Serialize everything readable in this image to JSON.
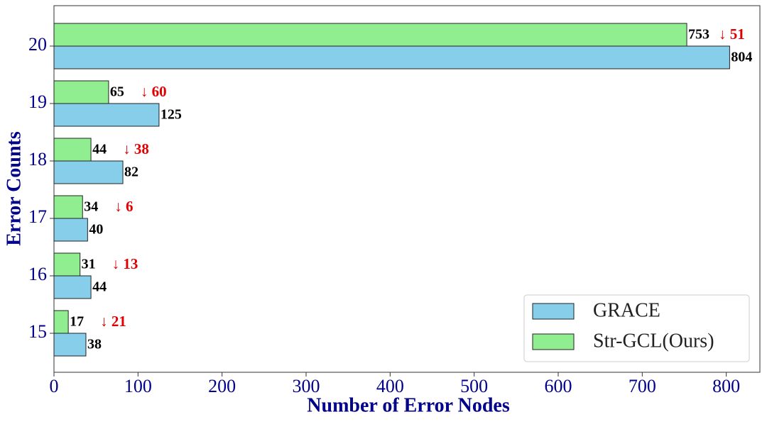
{
  "chart_data": {
    "type": "hbar",
    "x_label": "Number of Error Nodes",
    "y_label": "Error Counts",
    "categories": [
      "15",
      "16",
      "17",
      "18",
      "19",
      "20"
    ],
    "series": [
      {
        "name": "GRACE",
        "color": "#87ceeb",
        "values": [
          38,
          44,
          40,
          82,
          125,
          804
        ]
      },
      {
        "name": "Str-GCL(Ours)",
        "color": "#90ee90",
        "values": [
          17,
          31,
          34,
          44,
          65,
          753
        ]
      }
    ],
    "annotations": [
      "↓ 21",
      "↓ 13",
      "↓ 6",
      "↓ 38",
      "↓ 60",
      "↓ 51"
    ],
    "xlim": [
      0,
      840
    ],
    "xticks": [
      0,
      100,
      200,
      300,
      400,
      500,
      600,
      700,
      800
    ],
    "legend": "lower right"
  }
}
